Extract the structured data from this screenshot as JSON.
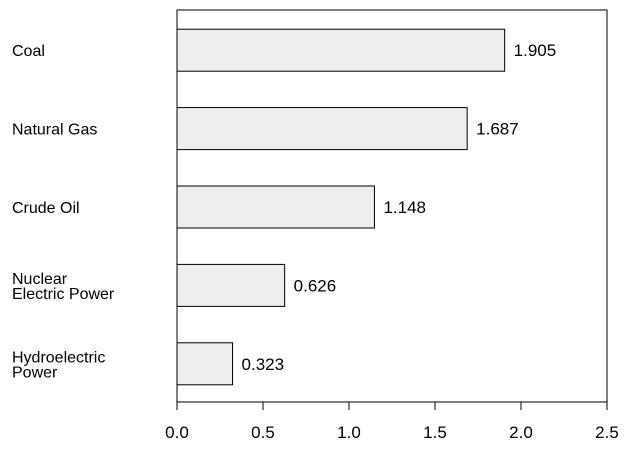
{
  "chart_data": {
    "type": "bar",
    "orientation": "horizontal",
    "categories": [
      [
        "Coal"
      ],
      [
        "Natural Gas"
      ],
      [
        "Crude Oil"
      ],
      [
        "Nuclear",
        "Electric Power"
      ],
      [
        "Hydroelectric",
        "Power"
      ]
    ],
    "values": [
      1.905,
      1.687,
      1.148,
      0.626,
      0.323
    ],
    "value_labels": [
      "1.905",
      "1.687",
      "1.148",
      "0.626",
      "0.323"
    ],
    "x_ticks": [
      "0.0",
      "0.5",
      "1.0",
      "1.5",
      "2.0",
      "2.5"
    ],
    "xlim": [
      0,
      2.5
    ],
    "grid": false,
    "bar_color": "#eeeeee",
    "bar_stroke": "#000000"
  }
}
